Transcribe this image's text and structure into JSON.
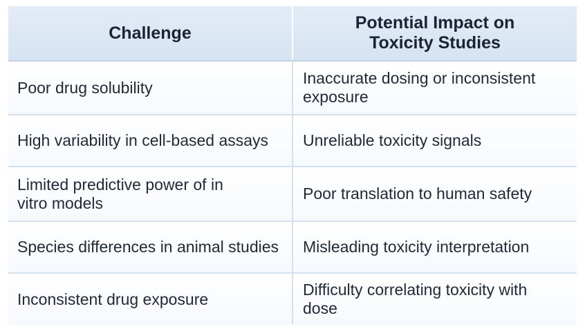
{
  "table": {
    "headers": {
      "challenge": "Challenge",
      "impact": "Potential Impact on Toxicity Studies"
    },
    "rows": [
      {
        "challenge": "Poor drug solubility",
        "impact": "Inaccurate dosing or inconsistent exposure"
      },
      {
        "challenge": "High variability in cell-based assays",
        "impact": "Unreliable toxicity signals"
      },
      {
        "challenge": "Limited predictive power of in vitro models",
        "impact": "Poor translation to human safety"
      },
      {
        "challenge": "Species differences in animal studies",
        "impact": "Misleading toxicity interpretation"
      },
      {
        "challenge": "Inconsistent drug exposure",
        "impact": "Difficulty correlating toxicity with dose"
      }
    ]
  }
}
